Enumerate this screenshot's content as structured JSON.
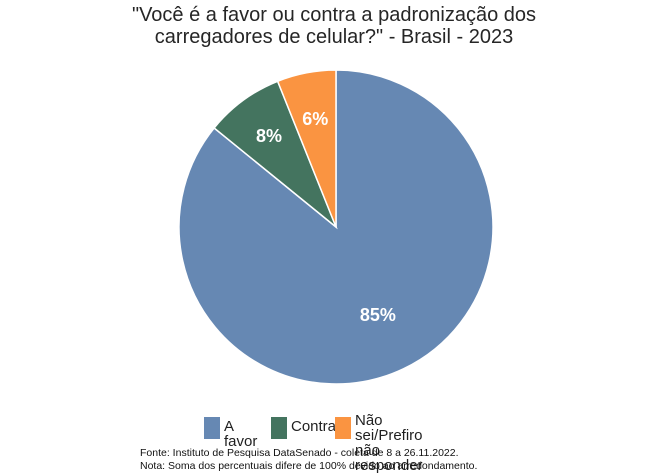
{
  "chart_data": {
    "type": "pie",
    "title_lines": [
      "\"Você é a favor ou contra a padronização dos",
      "carregadores de celular?\" - Brasil - 2023"
    ],
    "categories": [
      "A favor",
      "Contra",
      "Não sei/Prefiro não responder"
    ],
    "values": [
      85,
      8,
      6
    ],
    "data_labels": [
      "85%",
      "8%",
      "6%"
    ],
    "colors": [
      "#6688b3",
      "#44745f",
      "#fa9441"
    ],
    "legend_placement": "bottom",
    "legend_labels": [
      [
        "A favor"
      ],
      [
        "Contra"
      ],
      [
        "Não sei/Prefiro não",
        "responder"
      ]
    ]
  },
  "footer": {
    "source": "Fonte: Instituto de Pesquisa DataSenado - coleta de 8 a 26.11.2022.",
    "note": "Nota: Soma dos percentuais difere de 100% devido ao arredondamento."
  }
}
